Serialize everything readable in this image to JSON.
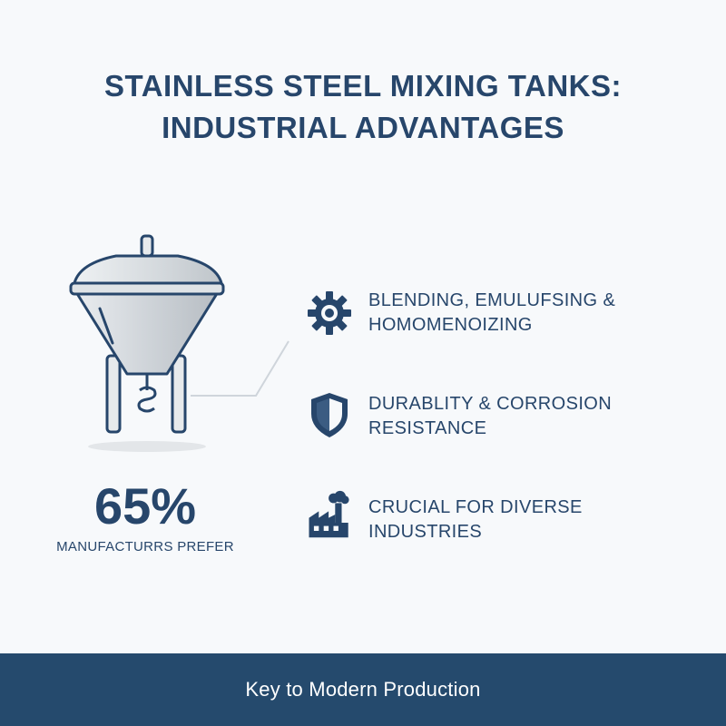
{
  "header": {
    "title_line1": "STAINLESS STEEL MIXING TANKS:",
    "title_line2": "INDUSTRIAL ADVANTAGES"
  },
  "illustration": {
    "icon": "mixing-tank-icon"
  },
  "stat": {
    "value": "65%",
    "label": "MANUFACTURRS PREFER"
  },
  "features": [
    {
      "icon": "gear-icon",
      "line1": "BLENDING, EMULUFSING &",
      "line2": "HOMOMENOIZING"
    },
    {
      "icon": "shield-icon",
      "line1": "DURABLITY & CORROSION",
      "line2": "RESISTANCE"
    },
    {
      "icon": "factory-icon",
      "line1": "CRUCIAL FOR DIVERSE",
      "line2": "INDUSTRIES"
    }
  ],
  "footer": {
    "text": "Key to Modern Production"
  },
  "colors": {
    "primary": "#27466b",
    "footer_bg": "#254a6d",
    "background": "#f7f9fb"
  }
}
